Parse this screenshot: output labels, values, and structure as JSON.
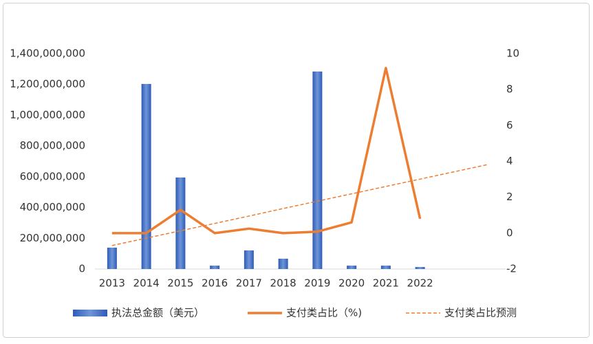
{
  "chart_data": {
    "type": "combo",
    "categories": [
      "2013",
      "2014",
      "2015",
      "2016",
      "2017",
      "2018",
      "2019",
      "2020",
      "2021",
      "2022",
      null,
      null
    ],
    "series": [
      {
        "name": "执法总金额（美元）",
        "type": "bar",
        "color": "#4472c4",
        "values": [
          139000000,
          1203000000,
          595000000,
          22000000,
          121000000,
          67000000,
          1284000000,
          22000000,
          22000000,
          13000000,
          null,
          null
        ]
      },
      {
        "name": "支付类占比（%)",
        "type": "line",
        "axis": "y2",
        "color": "#ed7d31",
        "values": [
          0,
          0,
          1.3,
          0,
          0.25,
          0,
          0.08,
          0.6,
          9.2,
          0.8,
          null,
          null
        ]
      },
      {
        "name": "支付类占比预测",
        "type": "line",
        "axis": "y2",
        "color": "#ed7d31",
        "dashed": true,
        "values": [
          -0.69,
          -0.28,
          0.13,
          0.54,
          0.95,
          1.37,
          1.78,
          2.19,
          2.6,
          3.01,
          3.42,
          3.83
        ]
      }
    ],
    "ylim": [
      0,
      1400000000
    ],
    "yticks": [
      0,
      {
        "value": 200000000,
        "label": "200,000,000"
      },
      {
        "value": 400000000,
        "label": "400,000,000"
      },
      {
        "value": 600000000,
        "label": "600,000,000"
      },
      {
        "value": 800000000,
        "label": "800,000,000"
      },
      {
        "value": 1000000000,
        "label": "1,000,000,000"
      },
      {
        "value": 1200000000,
        "label": "1,200,000,000"
      },
      {
        "value": 1400000000,
        "label": "1,400,000,000"
      }
    ],
    "y2lim": [
      -2,
      10
    ],
    "y2ticks": [
      -2,
      0,
      2,
      4,
      6,
      8,
      10
    ],
    "legend": "bottom"
  }
}
